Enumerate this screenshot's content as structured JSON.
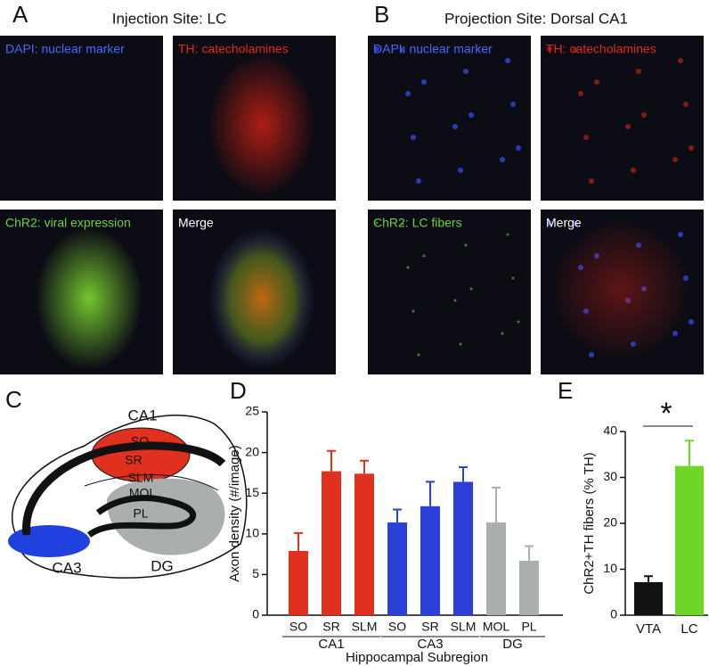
{
  "panel_labels": [
    "A",
    "B",
    "C",
    "D",
    "E"
  ],
  "panel_a": {
    "title": "Injection Site: LC",
    "images": [
      {
        "label": "DAPI: nuclear marker",
        "color": "#4a66ff"
      },
      {
        "label": "TH: catecholamines",
        "color": "#e0281e"
      },
      {
        "label": "ChR2: viral expression",
        "color": "#6ad23c"
      },
      {
        "label": "Merge",
        "color": "#ffffff"
      }
    ]
  },
  "panel_b": {
    "title": "Projection Site: Dorsal CA1",
    "images": [
      {
        "label": "DAPI: nuclear marker",
        "color": "#4a66ff"
      },
      {
        "label": "TH: catecholamines",
        "color": "#e0281e"
      },
      {
        "label": "ChR2: LC fibers",
        "color": "#6ad23c"
      },
      {
        "label": "Merge",
        "color": "#ffffff"
      }
    ]
  },
  "panel_c": {
    "labels": [
      "CA1",
      "SO",
      "SR",
      "SLM",
      "MOL",
      "PL",
      "CA3",
      "DG"
    ]
  },
  "chart_data": [
    {
      "type": "bar",
      "y_label": "Axon density (#/image)",
      "x_label": "Hippocampal Subregion",
      "ylim": [
        0,
        25
      ],
      "yticks": [
        0,
        5,
        10,
        15,
        20,
        25
      ],
      "groups": [
        {
          "label": "CA1",
          "color": "#e0301e",
          "categories": [
            "SO",
            "SR",
            "SLM"
          ],
          "values": [
            7.9,
            17.7,
            17.4
          ],
          "errors": [
            2.2,
            2.5,
            1.6
          ]
        },
        {
          "label": "CA3",
          "color": "#2b3fd9",
          "categories": [
            "SO",
            "SR",
            "SLM"
          ],
          "values": [
            11.4,
            13.4,
            16.4
          ],
          "errors": [
            1.6,
            3.0,
            1.8
          ]
        },
        {
          "label": "DG",
          "color": "#a9aeae",
          "categories": [
            "MOL",
            "PL"
          ],
          "values": [
            11.4,
            6.7
          ],
          "errors": [
            4.3,
            1.8
          ]
        }
      ]
    },
    {
      "type": "bar",
      "y_label": "ChR2+TH fibers (% TH)",
      "ylim": [
        0,
        40
      ],
      "yticks": [
        0,
        10,
        20,
        30,
        40
      ],
      "annotation": "*",
      "categories": [
        "VTA",
        "LC"
      ],
      "values": [
        7.2,
        32.5
      ],
      "errors": [
        1.3,
        5.5
      ],
      "colors": [
        "#111111",
        "#6fd629"
      ]
    }
  ]
}
